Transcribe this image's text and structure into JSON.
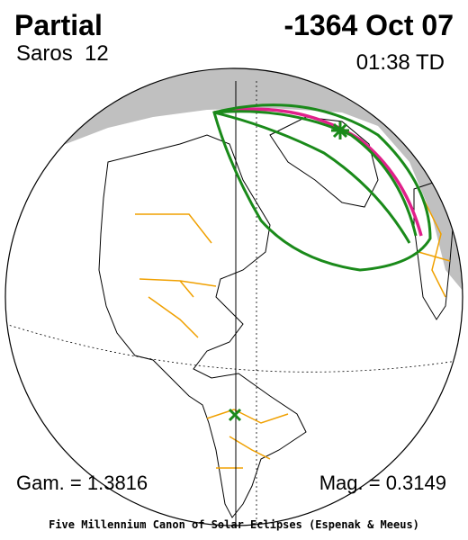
{
  "header": {
    "eclipse_type": "Partial",
    "date": "-1364 Oct 07",
    "saros": "Saros  12",
    "time": "01:38 TD"
  },
  "footer": {
    "gamma": "Gam. = 1.3816",
    "magnitude": "Mag. = 0.3149",
    "credit": "Five Millennium Canon of Solar Eclipses (Espenak & Meeus)"
  }
}
